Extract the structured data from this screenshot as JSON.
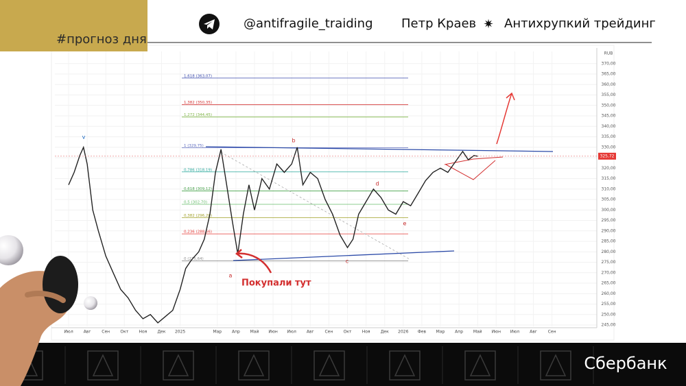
{
  "header": {
    "tag": "#прогноз дня",
    "channel": "@antifragile_traiding",
    "author": "Петр Краев",
    "brand": "Антихрупкий трейдинг"
  },
  "footer": {
    "company": "Сбербанк"
  },
  "chart_data": {
    "type": "line",
    "currency": "RUB",
    "color": "#222222",
    "grid": true,
    "x": [
      0,
      0.3,
      0.6,
      0.8,
      1.0,
      1.3,
      1.6,
      2.0,
      2.4,
      2.8,
      3.2,
      3.6,
      4.0,
      4.4,
      4.8,
      5.2,
      5.6,
      6.0,
      6.3,
      6.6,
      7.0,
      7.3,
      7.6,
      7.9,
      8.2,
      8.5,
      8.8,
      9.1,
      9.4,
      9.7,
      10.0,
      10.4,
      10.8,
      11.2,
      11.6,
      12.0,
      12.3,
      12.6,
      13.0,
      13.4,
      13.8,
      14.2,
      14.6,
      15.0,
      15.3,
      15.6,
      16.0,
      16.4,
      16.8,
      17.2,
      17.6,
      18.0,
      18.4,
      18.8,
      19.2,
      19.6,
      20.0,
      20.4,
      20.8,
      21.2,
      21.5,
      21.8,
      22.0
    ],
    "values": [
      312,
      318,
      326,
      330,
      322,
      300,
      290,
      278,
      270,
      262,
      258,
      252,
      248,
      250,
      246,
      249,
      252,
      262,
      272,
      276,
      280,
      286,
      298,
      318,
      329,
      312,
      295,
      279,
      298,
      312,
      300,
      315,
      310,
      322,
      318,
      322,
      330,
      312,
      318,
      315,
      305,
      298,
      288,
      282,
      286,
      298,
      304,
      310,
      306,
      300,
      298,
      304,
      302,
      308,
      314,
      318,
      320,
      318,
      323,
      328,
      324,
      326,
      325.72
    ],
    "xlim": [
      -0.3,
      27
    ],
    "xticks": [
      {
        "value": 0,
        "label": "Июл"
      },
      {
        "value": 1,
        "label": "Авг"
      },
      {
        "value": 2,
        "label": "Сен"
      },
      {
        "value": 3,
        "label": "Окт"
      },
      {
        "value": 4,
        "label": "Ноя"
      },
      {
        "value": 5,
        "label": "Дек"
      },
      {
        "value": 6,
        "label": "2025"
      },
      {
        "value": 8,
        "label": "Мар"
      },
      {
        "value": 9,
        "label": "Апр"
      },
      {
        "value": 10,
        "label": "Май"
      },
      {
        "value": 11,
        "label": "Июн"
      },
      {
        "value": 12,
        "label": "Июл"
      },
      {
        "value": 13,
        "label": "Авг"
      },
      {
        "value": 14,
        "label": "Сен"
      },
      {
        "value": 15,
        "label": "Окт"
      },
      {
        "value": 16,
        "label": "Ноя"
      },
      {
        "value": 17,
        "label": "Дек"
      },
      {
        "value": 18,
        "label": "2026"
      },
      {
        "value": 19,
        "label": "Фев"
      },
      {
        "value": 20,
        "label": "Мар"
      },
      {
        "value": 21,
        "label": "Апр"
      },
      {
        "value": 22,
        "label": "Май"
      },
      {
        "value": 23,
        "label": "Июн"
      },
      {
        "value": 24,
        "label": "Июл"
      },
      {
        "value": 25,
        "label": "Авг"
      },
      {
        "value": 26,
        "label": "Сен"
      }
    ],
    "ylim": [
      245,
      370
    ],
    "yticks": [
      {
        "value": 245,
        "label": "245,00"
      },
      {
        "value": 250,
        "label": "250,00"
      },
      {
        "value": 255,
        "label": "255,00"
      },
      {
        "value": 260,
        "label": "260,00"
      },
      {
        "value": 265,
        "label": "265,00"
      },
      {
        "value": 270,
        "label": "270,00"
      },
      {
        "value": 275,
        "label": "275,00"
      },
      {
        "value": 280,
        "label": "280,00"
      },
      {
        "value": 285,
        "label": "285,00"
      },
      {
        "value": 290,
        "label": "290,00"
      },
      {
        "value": 295,
        "label": "295,00"
      },
      {
        "value": 300,
        "label": "300,00"
      },
      {
        "value": 305,
        "label": "305,00"
      },
      {
        "value": 310,
        "label": "310,00"
      },
      {
        "value": 315,
        "label": "315,00"
      },
      {
        "value": 320,
        "label": "320,00"
      },
      {
        "value": 325,
        "label": "325,00"
      },
      {
        "value": 330,
        "label": "330,00"
      },
      {
        "value": 335,
        "label": "335,00"
      },
      {
        "value": 340,
        "label": "340,00"
      },
      {
        "value": 345,
        "label": "345,00"
      },
      {
        "value": 350,
        "label": "350,00"
      },
      {
        "value": 355,
        "label": "355,00"
      },
      {
        "value": 360,
        "label": "360,00"
      },
      {
        "value": 365,
        "label": "365,00"
      },
      {
        "value": 370,
        "label": "370,00"
      }
    ],
    "last_price": {
      "value": 325.72,
      "label": "325,72"
    },
    "fib_levels": [
      {
        "label": "1,618 (363,07)",
        "value": 363.07,
        "color": "#3949ab"
      },
      {
        "label": "1,382 (350,35)",
        "value": 350.35,
        "color": "#d32f2f"
      },
      {
        "label": "1,272 (344,45)",
        "value": 344.45,
        "color": "#7cb342"
      },
      {
        "label": "1 (329,75)",
        "value": 329.75,
        "color": "#5c6bc0"
      },
      {
        "label": "0,786 (318,19)",
        "value": 318.19,
        "color": "#26a69a"
      },
      {
        "label": "0,618 (309,12)",
        "value": 309.12,
        "color": "#43a047"
      },
      {
        "label": "0,5 (302,70)",
        "value": 302.7,
        "color": "#66bb6a"
      },
      {
        "label": "0,382 (296,28)",
        "value": 296.28,
        "color": "#9e9d24"
      },
      {
        "label": "0,236 (288,56)",
        "value": 288.56,
        "color": "#e53935"
      },
      {
        "label": "0 (275,64)",
        "value": 275.64,
        "color": "#8d8d8d"
      }
    ],
    "wave_labels": [
      "v",
      "b",
      "d",
      "c",
      "e",
      "a"
    ],
    "annotation": "Покупали тут"
  }
}
